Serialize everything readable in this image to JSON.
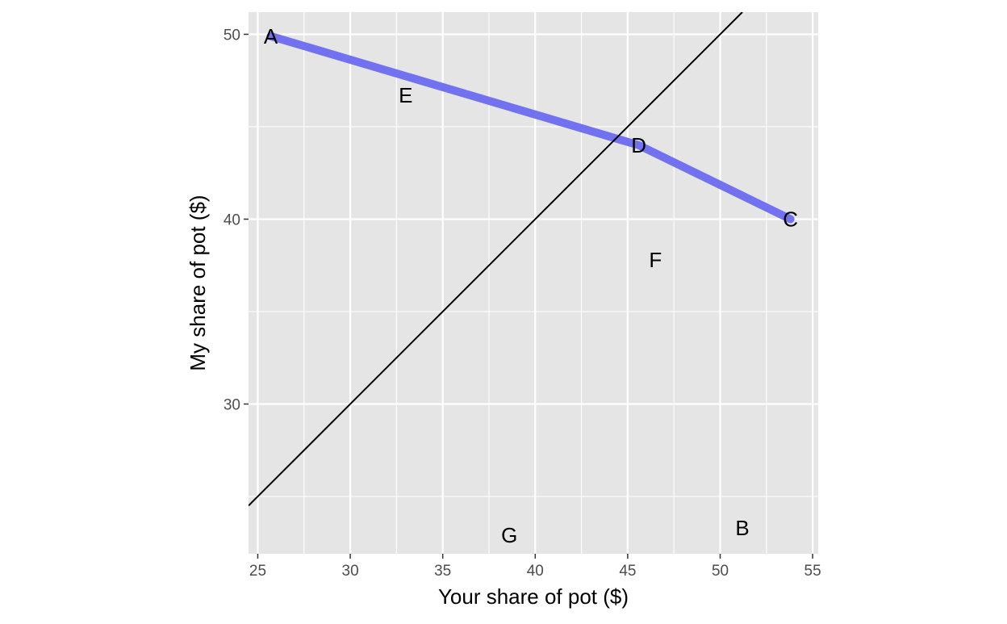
{
  "chart_data": {
    "type": "line",
    "title": "",
    "xlabel": "Your share of pot ($)",
    "ylabel": "My share of pot ($)",
    "xlim": [
      24.5,
      55.3
    ],
    "ylim": [
      21.9,
      51.2
    ],
    "x_ticks": [
      25,
      30,
      35,
      40,
      45,
      50,
      55
    ],
    "y_ticks": [
      30,
      40,
      50
    ],
    "grid": true,
    "legend": "none",
    "background": "#e5e5e5",
    "gridline_color": "#ffffff",
    "series": [
      {
        "type": "line",
        "color": "#7272f0",
        "points": [
          {
            "x": 25.7,
            "y": 49.9
          },
          {
            "x": 45.6,
            "y": 44.0
          },
          {
            "x": 53.8,
            "y": 40.0
          }
        ]
      },
      {
        "type": "line",
        "color": "#000000",
        "points": [
          {
            "x": 24.5,
            "y": 24.5
          },
          {
            "x": 51.2,
            "y": 51.2
          }
        ]
      }
    ],
    "annotations": [
      {
        "text": "A",
        "x": 25.7,
        "y": 49.9
      },
      {
        "text": "B",
        "x": 51.2,
        "y": 23.3
      },
      {
        "text": "C",
        "x": 53.8,
        "y": 40.0
      },
      {
        "text": "D",
        "x": 45.6,
        "y": 44.0
      },
      {
        "text": "E",
        "x": 33.0,
        "y": 46.7
      },
      {
        "text": "F",
        "x": 46.5,
        "y": 37.8
      },
      {
        "text": "G",
        "x": 38.6,
        "y": 22.9
      }
    ]
  }
}
